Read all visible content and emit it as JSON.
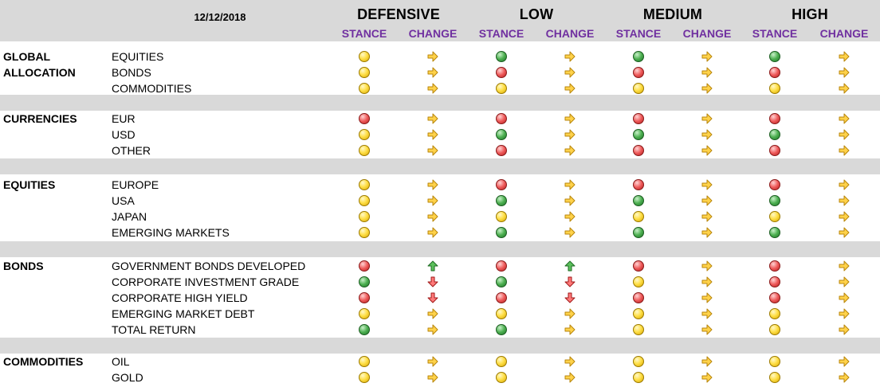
{
  "date": "12/12/2018",
  "profiles": [
    "DEFENSIVE",
    "LOW",
    "MEDIUM",
    "HIGH"
  ],
  "column_labels": {
    "stance": "STANCE",
    "change": "CHANGE"
  },
  "sections": [
    {
      "title": [
        "GLOBAL",
        "ALLOCATION"
      ],
      "rows": [
        {
          "label": "EQUITIES",
          "cells": [
            [
              "yellow",
              "right"
            ],
            [
              "green",
              "right"
            ],
            [
              "green",
              "right"
            ],
            [
              "green",
              "right"
            ]
          ]
        },
        {
          "label": "BONDS",
          "cells": [
            [
              "yellow",
              "right"
            ],
            [
              "red",
              "right"
            ],
            [
              "red",
              "right"
            ],
            [
              "red",
              "right"
            ]
          ]
        },
        {
          "label": "COMMODITIES",
          "cells": [
            [
              "yellow",
              "right"
            ],
            [
              "yellow",
              "right"
            ],
            [
              "yellow",
              "right"
            ],
            [
              "yellow",
              "right"
            ]
          ]
        }
      ]
    },
    {
      "title": [
        "CURRENCIES"
      ],
      "rows": [
        {
          "label": "EUR",
          "cells": [
            [
              "red",
              "right"
            ],
            [
              "red",
              "right"
            ],
            [
              "red",
              "right"
            ],
            [
              "red",
              "right"
            ]
          ]
        },
        {
          "label": "USD",
          "cells": [
            [
              "yellow",
              "right"
            ],
            [
              "green",
              "right"
            ],
            [
              "green",
              "right"
            ],
            [
              "green",
              "right"
            ]
          ]
        },
        {
          "label": "OTHER",
          "cells": [
            [
              "yellow",
              "right"
            ],
            [
              "red",
              "right"
            ],
            [
              "red",
              "right"
            ],
            [
              "red",
              "right"
            ]
          ]
        }
      ]
    },
    {
      "title": [
        "EQUITIES"
      ],
      "rows": [
        {
          "label": "EUROPE",
          "cells": [
            [
              "yellow",
              "right"
            ],
            [
              "red",
              "right"
            ],
            [
              "red",
              "right"
            ],
            [
              "red",
              "right"
            ]
          ]
        },
        {
          "label": "USA",
          "cells": [
            [
              "yellow",
              "right"
            ],
            [
              "green",
              "right"
            ],
            [
              "green",
              "right"
            ],
            [
              "green",
              "right"
            ]
          ]
        },
        {
          "label": "JAPAN",
          "cells": [
            [
              "yellow",
              "right"
            ],
            [
              "yellow",
              "right"
            ],
            [
              "yellow",
              "right"
            ],
            [
              "yellow",
              "right"
            ]
          ]
        },
        {
          "label": "EMERGING MARKETS",
          "cells": [
            [
              "yellow",
              "right"
            ],
            [
              "green",
              "right"
            ],
            [
              "green",
              "right"
            ],
            [
              "green",
              "right"
            ]
          ]
        }
      ]
    },
    {
      "title": [
        "BONDS"
      ],
      "rows": [
        {
          "label": "GOVERNMENT BONDS DEVELOPED",
          "cells": [
            [
              "red",
              "up"
            ],
            [
              "red",
              "up"
            ],
            [
              "red",
              "right"
            ],
            [
              "red",
              "right"
            ]
          ]
        },
        {
          "label": "CORPORATE INVESTMENT GRADE",
          "cells": [
            [
              "green",
              "down"
            ],
            [
              "green",
              "down"
            ],
            [
              "yellow",
              "right"
            ],
            [
              "red",
              "right"
            ]
          ]
        },
        {
          "label": "CORPORATE HIGH YIELD",
          "cells": [
            [
              "red",
              "down"
            ],
            [
              "red",
              "down"
            ],
            [
              "red",
              "right"
            ],
            [
              "red",
              "right"
            ]
          ]
        },
        {
          "label": "EMERGING MARKET DEBT",
          "cells": [
            [
              "yellow",
              "right"
            ],
            [
              "yellow",
              "right"
            ],
            [
              "yellow",
              "right"
            ],
            [
              "yellow",
              "right"
            ]
          ]
        },
        {
          "label": "TOTAL RETURN",
          "cells": [
            [
              "green",
              "right"
            ],
            [
              "green",
              "right"
            ],
            [
              "yellow",
              "right"
            ],
            [
              "yellow",
              "right"
            ]
          ]
        }
      ]
    },
    {
      "title": [
        "COMMODITIES"
      ],
      "rows": [
        {
          "label": "OIL",
          "cells": [
            [
              "yellow",
              "right"
            ],
            [
              "yellow",
              "right"
            ],
            [
              "yellow",
              "right"
            ],
            [
              "yellow",
              "right"
            ]
          ]
        },
        {
          "label": "GOLD",
          "cells": [
            [
              "yellow",
              "right"
            ],
            [
              "yellow",
              "right"
            ],
            [
              "yellow",
              "right"
            ],
            [
              "yellow",
              "right"
            ]
          ]
        }
      ]
    }
  ]
}
